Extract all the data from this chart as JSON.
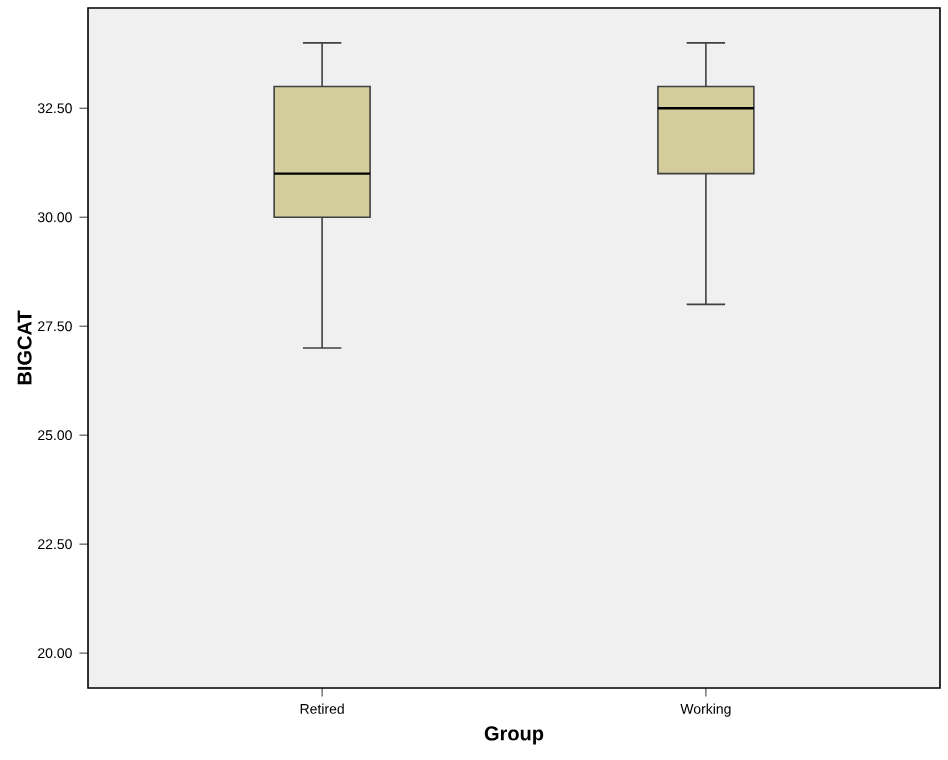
{
  "chart_data": {
    "type": "box",
    "xlabel": "Group",
    "ylabel": "BIGCAT",
    "categories": [
      "Retired",
      "Working"
    ],
    "boxes": [
      {
        "low": 27,
        "q1": 30,
        "median": 31,
        "q3": 33,
        "high": 34
      },
      {
        "low": 28,
        "q1": 31,
        "median": 32.5,
        "q3": 33,
        "high": 34
      }
    ],
    "color": "#d3cd9b",
    "ylim": [
      19.2,
      34.8
    ],
    "yticks": [
      {
        "value": 20,
        "label": "20.00"
      },
      {
        "value": 22.5,
        "label": "22.50"
      },
      {
        "value": 25,
        "label": "25.00"
      },
      {
        "value": 27.5,
        "label": "27.50"
      },
      {
        "value": 30,
        "label": "30.00"
      },
      {
        "value": 32.5,
        "label": "32.50"
      }
    ]
  }
}
